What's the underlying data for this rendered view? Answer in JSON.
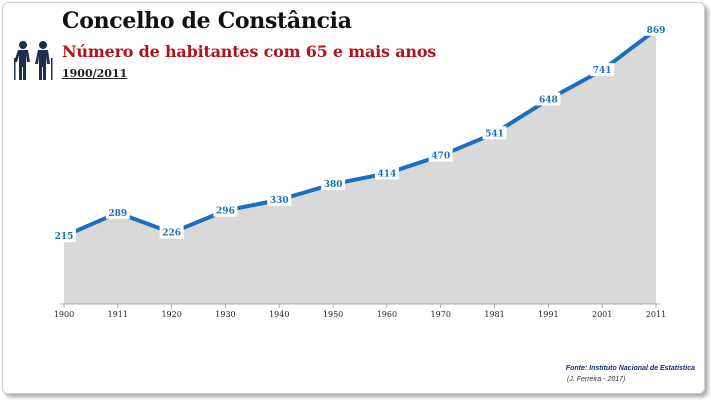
{
  "header": {
    "title": "Concelho de Constância",
    "subtitle": "Número de habitantes com 65 e mais anos",
    "period": "1900/2011",
    "icon": "elderly-people-icon"
  },
  "footer": {
    "source": "Fonte: Instituto Nacional de Estatística",
    "author": "(J. Ferreira - 2017)"
  },
  "colors": {
    "line": "#1a6fc0",
    "area": "#d9d9d9",
    "label": "#1a6fc0",
    "subtitle": "#b0151b"
  },
  "chart_data": {
    "type": "area",
    "categories": [
      "1900",
      "1911",
      "1920",
      "1930",
      "1940",
      "1950",
      "1960",
      "1970",
      "1981",
      "1991",
      "2001",
      "2011"
    ],
    "values": [
      215,
      289,
      226,
      296,
      330,
      380,
      414,
      470,
      541,
      648,
      741,
      869
    ],
    "xlabel": "",
    "ylabel": "",
    "ylim": [
      0,
      900
    ],
    "grid": false,
    "legend": "none"
  }
}
